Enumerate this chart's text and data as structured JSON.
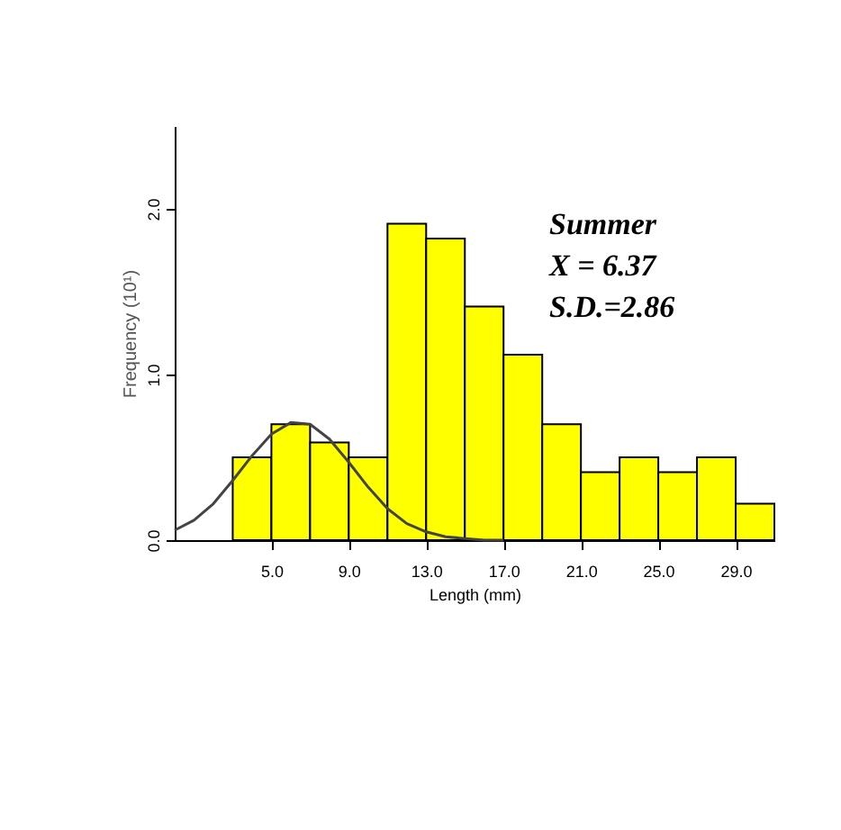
{
  "chart_data": {
    "type": "histogram",
    "bins": [
      3,
      5,
      7,
      9,
      11,
      13,
      15,
      17,
      19,
      21,
      23,
      25,
      27,
      29,
      31
    ],
    "series": [
      {
        "color": "#ffff00",
        "values": [
          0.5,
          0.7,
          0.59,
          0.5,
          1.91,
          1.82,
          1.41,
          1.12,
          0.7,
          0.41,
          0.5,
          0.41,
          0.5,
          0.22
        ]
      },
      {
        "type": "line",
        "color": "#444444",
        "x": [
          0,
          1,
          2,
          3,
          4,
          5,
          6,
          7,
          8,
          9,
          10,
          11,
          12,
          13,
          14,
          15,
          16,
          17
        ],
        "values": [
          0.06,
          0.12,
          0.22,
          0.36,
          0.51,
          0.64,
          0.71,
          0.7,
          0.61,
          0.47,
          0.32,
          0.19,
          0.1,
          0.05,
          0.02,
          0.01,
          0.0,
          0.0
        ]
      }
    ],
    "xlabel": "Length (mm)",
    "ylabel": "Frequency (10¹)",
    "xlim": [
      0,
      31
    ],
    "ylim": [
      0,
      2.5
    ],
    "xticks": [
      {
        "value": 5,
        "label": "5.0"
      },
      {
        "value": 9,
        "label": "9.0"
      },
      {
        "value": 13,
        "label": "13.0"
      },
      {
        "value": 17,
        "label": "17.0"
      },
      {
        "value": 21,
        "label": "21.0"
      },
      {
        "value": 25,
        "label": "25.0"
      },
      {
        "value": 29,
        "label": "29.0"
      }
    ],
    "yticks": [
      {
        "value": 0,
        "label": "0.0"
      },
      {
        "value": 1,
        "label": "1.0"
      },
      {
        "value": 2,
        "label": "2.0"
      }
    ],
    "annotations": [
      "Summer",
      "X = 6.37",
      "S.D.=2.86"
    ],
    "grid": false
  }
}
